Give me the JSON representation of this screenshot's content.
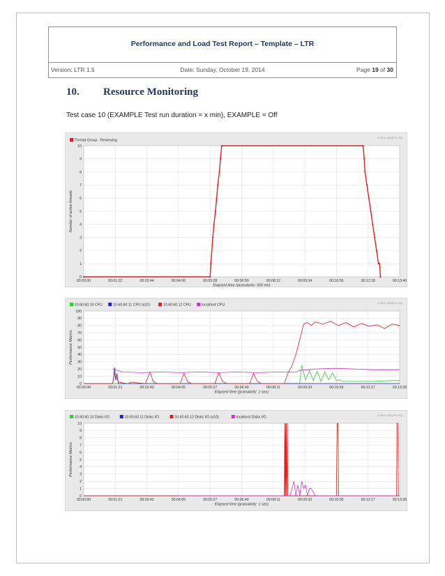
{
  "header": {
    "title": "Performance and Load Test Report – Template – LTR",
    "version": "Version: LTR 1.5",
    "date": "Date: Sunday, October 19, 2014",
    "page_prefix": "Page ",
    "page_num": "19",
    "page_of": " of ",
    "page_total": "30"
  },
  "section": {
    "number": "10.",
    "title": "Resource Monitoring"
  },
  "testcase": "Test case 10 (EXAMPLE Test run duration = x min), EXAMPLE = Off",
  "colors": {
    "heading": "#1f3864",
    "red": "#e02020",
    "green": "#33cc33",
    "blue": "#2222cc",
    "magenta": "#cc33cc"
  },
  "chart_data": [
    {
      "type": "line",
      "watermark": "jmeter-plugins.org",
      "ylabel": "Number of active threads",
      "xlabel": "Elapsed time (granularity: 500 ms)",
      "ylim": [
        0,
        10
      ],
      "yticks": [
        "0",
        "1",
        "2",
        "3",
        "4",
        "5",
        "6",
        "7",
        "8",
        "9",
        "10"
      ],
      "xticks": [
        "00:00:00",
        "00:01:22",
        "00:02:44",
        "00:04:06",
        "00:05:28",
        "00:06:50",
        "00:08:12",
        "00:09:34",
        "00:10:56",
        "00:12:18",
        "00:13:40"
      ],
      "xlim_sec": [
        0,
        820
      ],
      "series": [
        {
          "name": "Thread Group - Reviewing",
          "color": "#e02020",
          "x": [
            0,
            328,
            330,
            335,
            338,
            342,
            345,
            348,
            352,
            355,
            358,
            725,
            728,
            730,
            735,
            740,
            745,
            750,
            755,
            760,
            765,
            768,
            770
          ],
          "y": [
            0,
            0,
            1,
            3,
            4,
            5,
            6,
            7,
            8,
            9,
            10,
            10,
            9,
            8,
            7,
            6,
            5,
            4,
            3,
            2,
            1,
            1,
            0
          ]
        }
      ]
    },
    {
      "type": "line",
      "watermark": "jmeter-plugins.org",
      "ylabel": "Performance Metrics",
      "xlabel": "Elapsed time (granularity: 1 sec)",
      "ylim": [
        0,
        100
      ],
      "yticks": [
        "0",
        "10",
        "20",
        "30",
        "40",
        "50",
        "60",
        "70",
        "80",
        "90",
        "100"
      ],
      "xticks": [
        "00:00:00",
        "00:01:21",
        "00:02:43",
        "00:04:05",
        "00:05:27",
        "00:06:49",
        "00:08:11",
        "00:09:33",
        "00:10:55",
        "00:12:17",
        "00:13:39"
      ],
      "xlim_sec": [
        0,
        819
      ],
      "series": [
        {
          "name": "10.60.60.10 CPU",
          "color": "#33cc33",
          "x": [
            0,
            560,
            565,
            575,
            585,
            595,
            605,
            615,
            625,
            635,
            645,
            655,
            665,
            670,
            700,
            750,
            800,
            819
          ],
          "y": [
            0,
            0,
            25,
            5,
            18,
            4,
            17,
            3,
            16,
            5,
            15,
            4,
            5,
            3,
            3,
            3,
            4,
            4
          ]
        },
        {
          "name": "10.60.60.11 CPU (x10)",
          "color": "#2222cc",
          "x": [
            0,
            75,
            78,
            80,
            83,
            86,
            90,
            819
          ],
          "y": [
            0,
            0,
            10,
            22,
            5,
            14,
            0,
            0
          ]
        },
        {
          "name": "10.60.60.12 CPU",
          "color": "#e02020",
          "x": [
            0,
            75,
            80,
            90,
            100,
            115,
            125,
            140,
            160,
            172,
            180,
            190,
            250,
            260,
            270,
            280,
            340,
            350,
            360,
            370,
            430,
            440,
            450,
            460,
            520,
            530,
            540,
            550,
            560,
            570,
            580,
            590,
            600,
            620,
            640,
            660,
            680,
            700,
            720,
            740,
            760,
            780,
            800,
            819
          ],
          "y": [
            0,
            0,
            14,
            2,
            1,
            0,
            2,
            1,
            0,
            16,
            3,
            0,
            0,
            14,
            2,
            0,
            0,
            15,
            3,
            0,
            0,
            14,
            3,
            0,
            0,
            15,
            25,
            40,
            60,
            82,
            84,
            80,
            85,
            82,
            86,
            80,
            84,
            78,
            83,
            79,
            81,
            76,
            82,
            80
          ]
        },
        {
          "name": "localhost CPU",
          "color": "#cc33cc",
          "x": [
            75,
            100,
            150,
            200,
            250,
            300,
            350,
            400,
            450,
            500,
            550,
            560,
            600,
            650,
            700,
            750,
            800,
            819
          ],
          "y": [
            20,
            16,
            15,
            16,
            15,
            16,
            15,
            16,
            15,
            16,
            16,
            18,
            20,
            21,
            20,
            19,
            19,
            19
          ]
        }
      ]
    },
    {
      "type": "line",
      "watermark": "jmeter-plugins.org",
      "ylabel": "Performance Metrics",
      "xlabel": "Elapsed time (granularity: 1 sec)",
      "ylim": [
        0,
        10
      ],
      "yticks": [
        "0",
        "1",
        "2",
        "3",
        "4",
        "5",
        "6",
        "7",
        "8",
        "9",
        "10"
      ],
      "xticks": [
        "00:00:00",
        "00:01:21",
        "00:02:43",
        "00:04:05",
        "00:05:27",
        "00:06:49",
        "00:08:11",
        "00:09:33",
        "00:10:55",
        "00:12:17",
        "00:13:39"
      ],
      "xlim_sec": [
        0,
        819
      ],
      "series": [
        {
          "name": "10.60.60.10 Disks I/O",
          "color": "#33cc33",
          "x": [
            0,
            819
          ],
          "y": [
            0,
            0
          ]
        },
        {
          "name": "10.60.60.11 Disks I/O",
          "color": "#2222cc",
          "x": [
            0,
            819
          ],
          "y": [
            0,
            0
          ]
        },
        {
          "name": "10.60.60.12 Disks I/O (x10)",
          "color": "#e02020",
          "x": [
            0,
            520,
            521,
            522,
            523,
            524,
            525,
            526,
            527,
            528,
            529,
            530,
            655,
            657,
            659,
            661,
            663,
            811,
            812,
            814,
            816,
            819
          ],
          "y": [
            0,
            0,
            10,
            0,
            10,
            0,
            10,
            0,
            3,
            10,
            0,
            0,
            0,
            10,
            10,
            0,
            0,
            0,
            10,
            10,
            0,
            0
          ]
        },
        {
          "name": "localhost Disks I/O",
          "color": "#cc33cc",
          "x": [
            245,
            520,
            535,
            545,
            550,
            555,
            560,
            565,
            570,
            575,
            580,
            585,
            590,
            595,
            600,
            819
          ],
          "y": [
            0,
            0,
            0,
            2,
            0,
            1.5,
            0,
            2,
            1,
            1.5,
            0,
            1,
            1,
            0.5,
            0,
            0
          ]
        }
      ]
    }
  ]
}
